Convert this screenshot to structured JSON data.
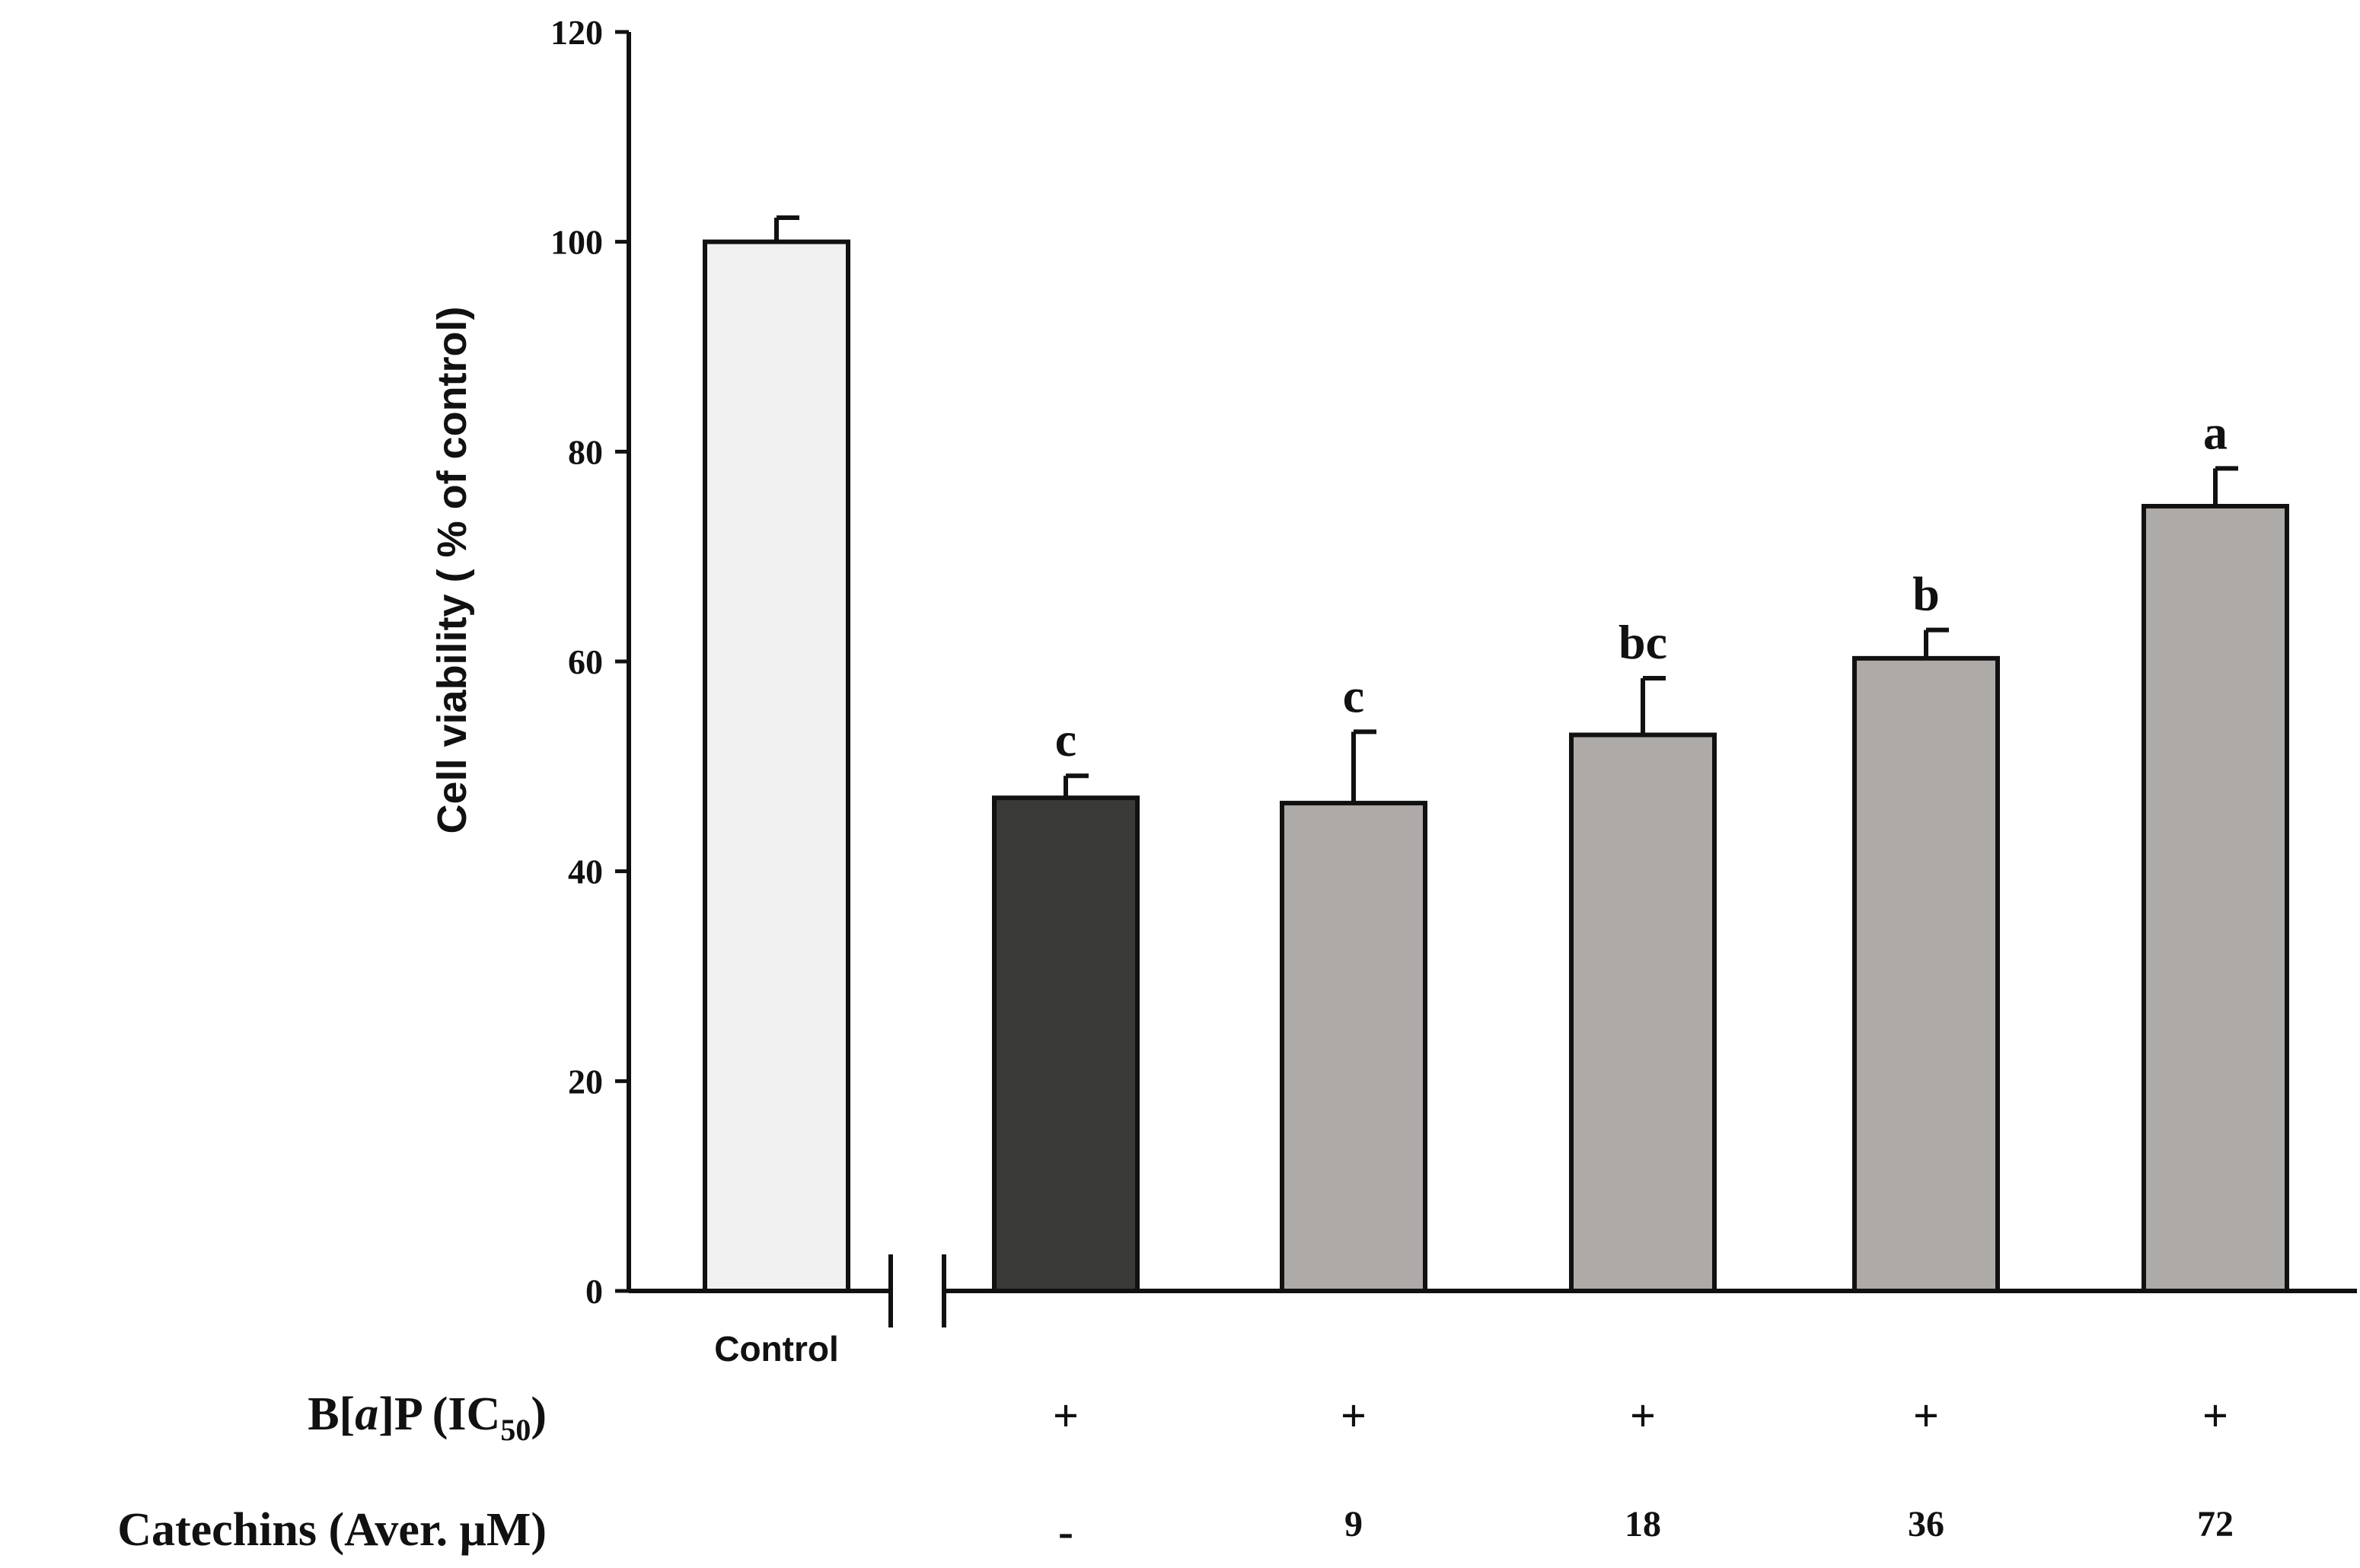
{
  "chart_data": {
    "type": "bar",
    "title": "",
    "ylabel": "Cell viability ( % of control)",
    "xlabel": "",
    "ylim": [
      0,
      120
    ],
    "yticks": [
      0,
      20,
      40,
      60,
      80,
      100,
      120
    ],
    "grid": false,
    "legend": "none",
    "axis_break": "between Control and treatment groups",
    "categories": [
      "Control",
      "",
      "",
      "",
      "",
      ""
    ],
    "values": [
      100,
      47,
      46.5,
      53,
      60.3,
      74.8
    ],
    "errors": [
      2.3,
      2.1,
      6.8,
      5.4,
      2.7,
      3.6
    ],
    "significance_labels": [
      "",
      "c",
      "c",
      "bc",
      "b",
      "a"
    ],
    "bar_colors": [
      "#f0f0f0",
      "#3a3a38",
      "#adaaa8",
      "#adaaa8",
      "#adaaa8",
      "#adaaa8"
    ],
    "treatment_rows": [
      {
        "label_prefix": "B[",
        "label_italic": "a",
        "label_middle": "]P (IC",
        "label_subscript": "50",
        "label_suffix": ")",
        "values": [
          "",
          "+",
          "+",
          "+",
          "+",
          "+"
        ]
      },
      {
        "label": "Catechins (Aver. μM)",
        "values": [
          "",
          "-",
          "9",
          "18",
          "36",
          "72"
        ]
      }
    ]
  }
}
